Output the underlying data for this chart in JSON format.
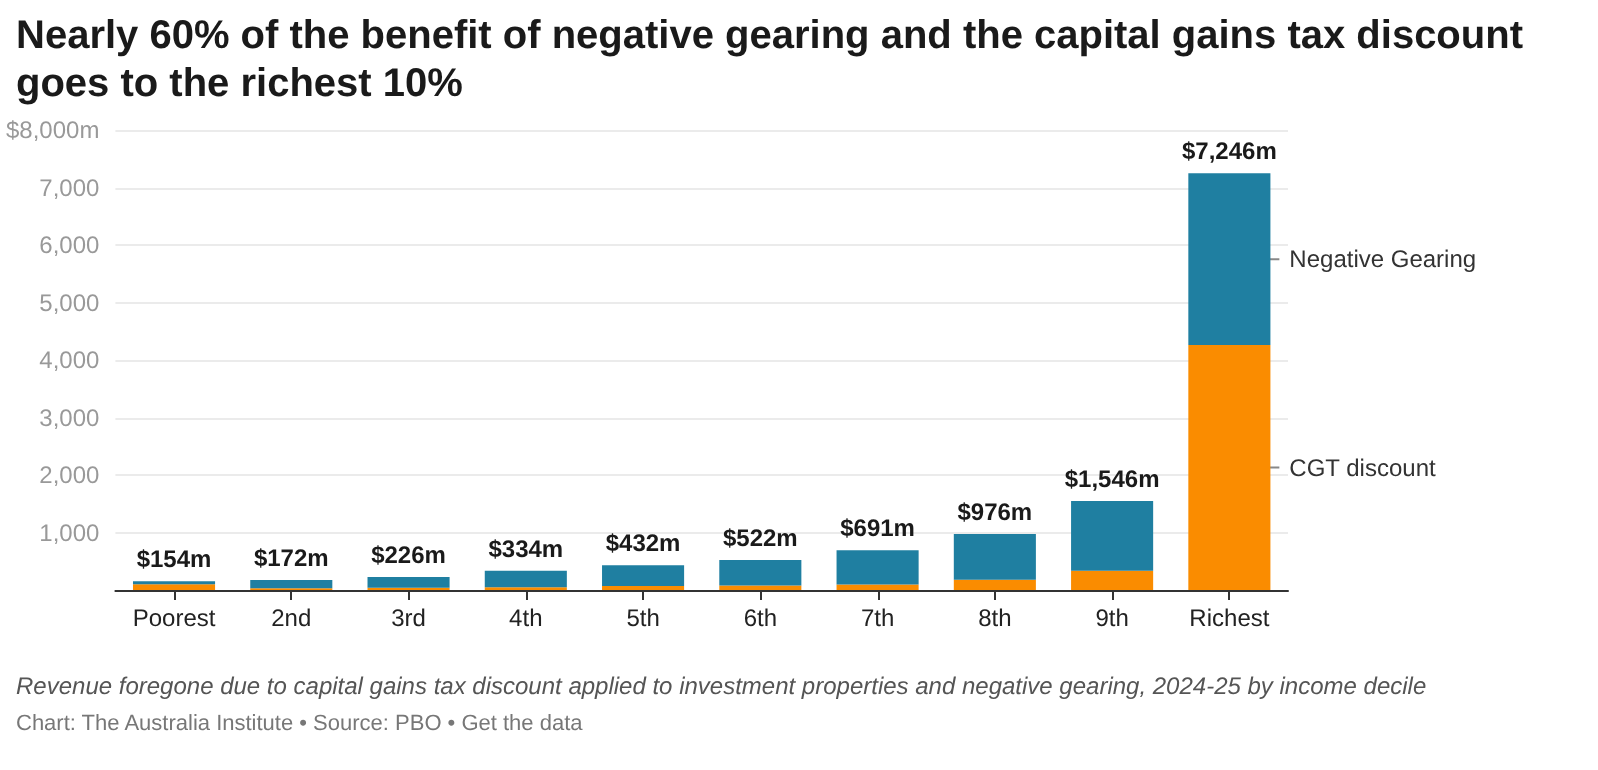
{
  "chart_data": {
    "type": "bar",
    "title": "Nearly 60% of the benefit of negative gearing and the capital gains tax discount goes to the richest 10%",
    "categories": [
      "Poorest",
      "2nd",
      "3rd",
      "4th",
      "5th",
      "6th",
      "7th",
      "8th",
      "9th",
      "Richest"
    ],
    "stacked": true,
    "series": [
      {
        "name": "CGT discount",
        "color": "#fa8c00",
        "values": [
          100,
          30,
          40,
          50,
          70,
          80,
          95,
          180,
          335,
          4260
        ]
      },
      {
        "name": "Negative Gearing",
        "color": "#1f7fa1",
        "values": [
          54,
          142,
          186,
          284,
          362,
          442,
          596,
          796,
          1211,
          2986
        ]
      }
    ],
    "totals": [
      "$154m",
      "$172m",
      "$226m",
      "$334m",
      "$432m",
      "$522m",
      "$691m",
      "$976m",
      "$1,546m",
      "$7,246m"
    ],
    "ylim": [
      0,
      8000
    ],
    "yticks": [
      {
        "value": 1000,
        "label": "1,000"
      },
      {
        "value": 2000,
        "label": "2,000"
      },
      {
        "value": 3000,
        "label": "3,000"
      },
      {
        "value": 4000,
        "label": "4,000"
      },
      {
        "value": 5000,
        "label": "5,000"
      },
      {
        "value": 6000,
        "label": "6,000"
      },
      {
        "value": 7000,
        "label": "7,000"
      },
      {
        "value": 8000,
        "label": "$8,000m"
      }
    ],
    "grid": "y",
    "annotations": [
      "Revenue foregone due to capital gains tax discount applied to investment properties and negative gearing, 2024-25 by income decile",
      "Chart: The Australia Institute • Source: PBO • Get the data"
    ]
  }
}
